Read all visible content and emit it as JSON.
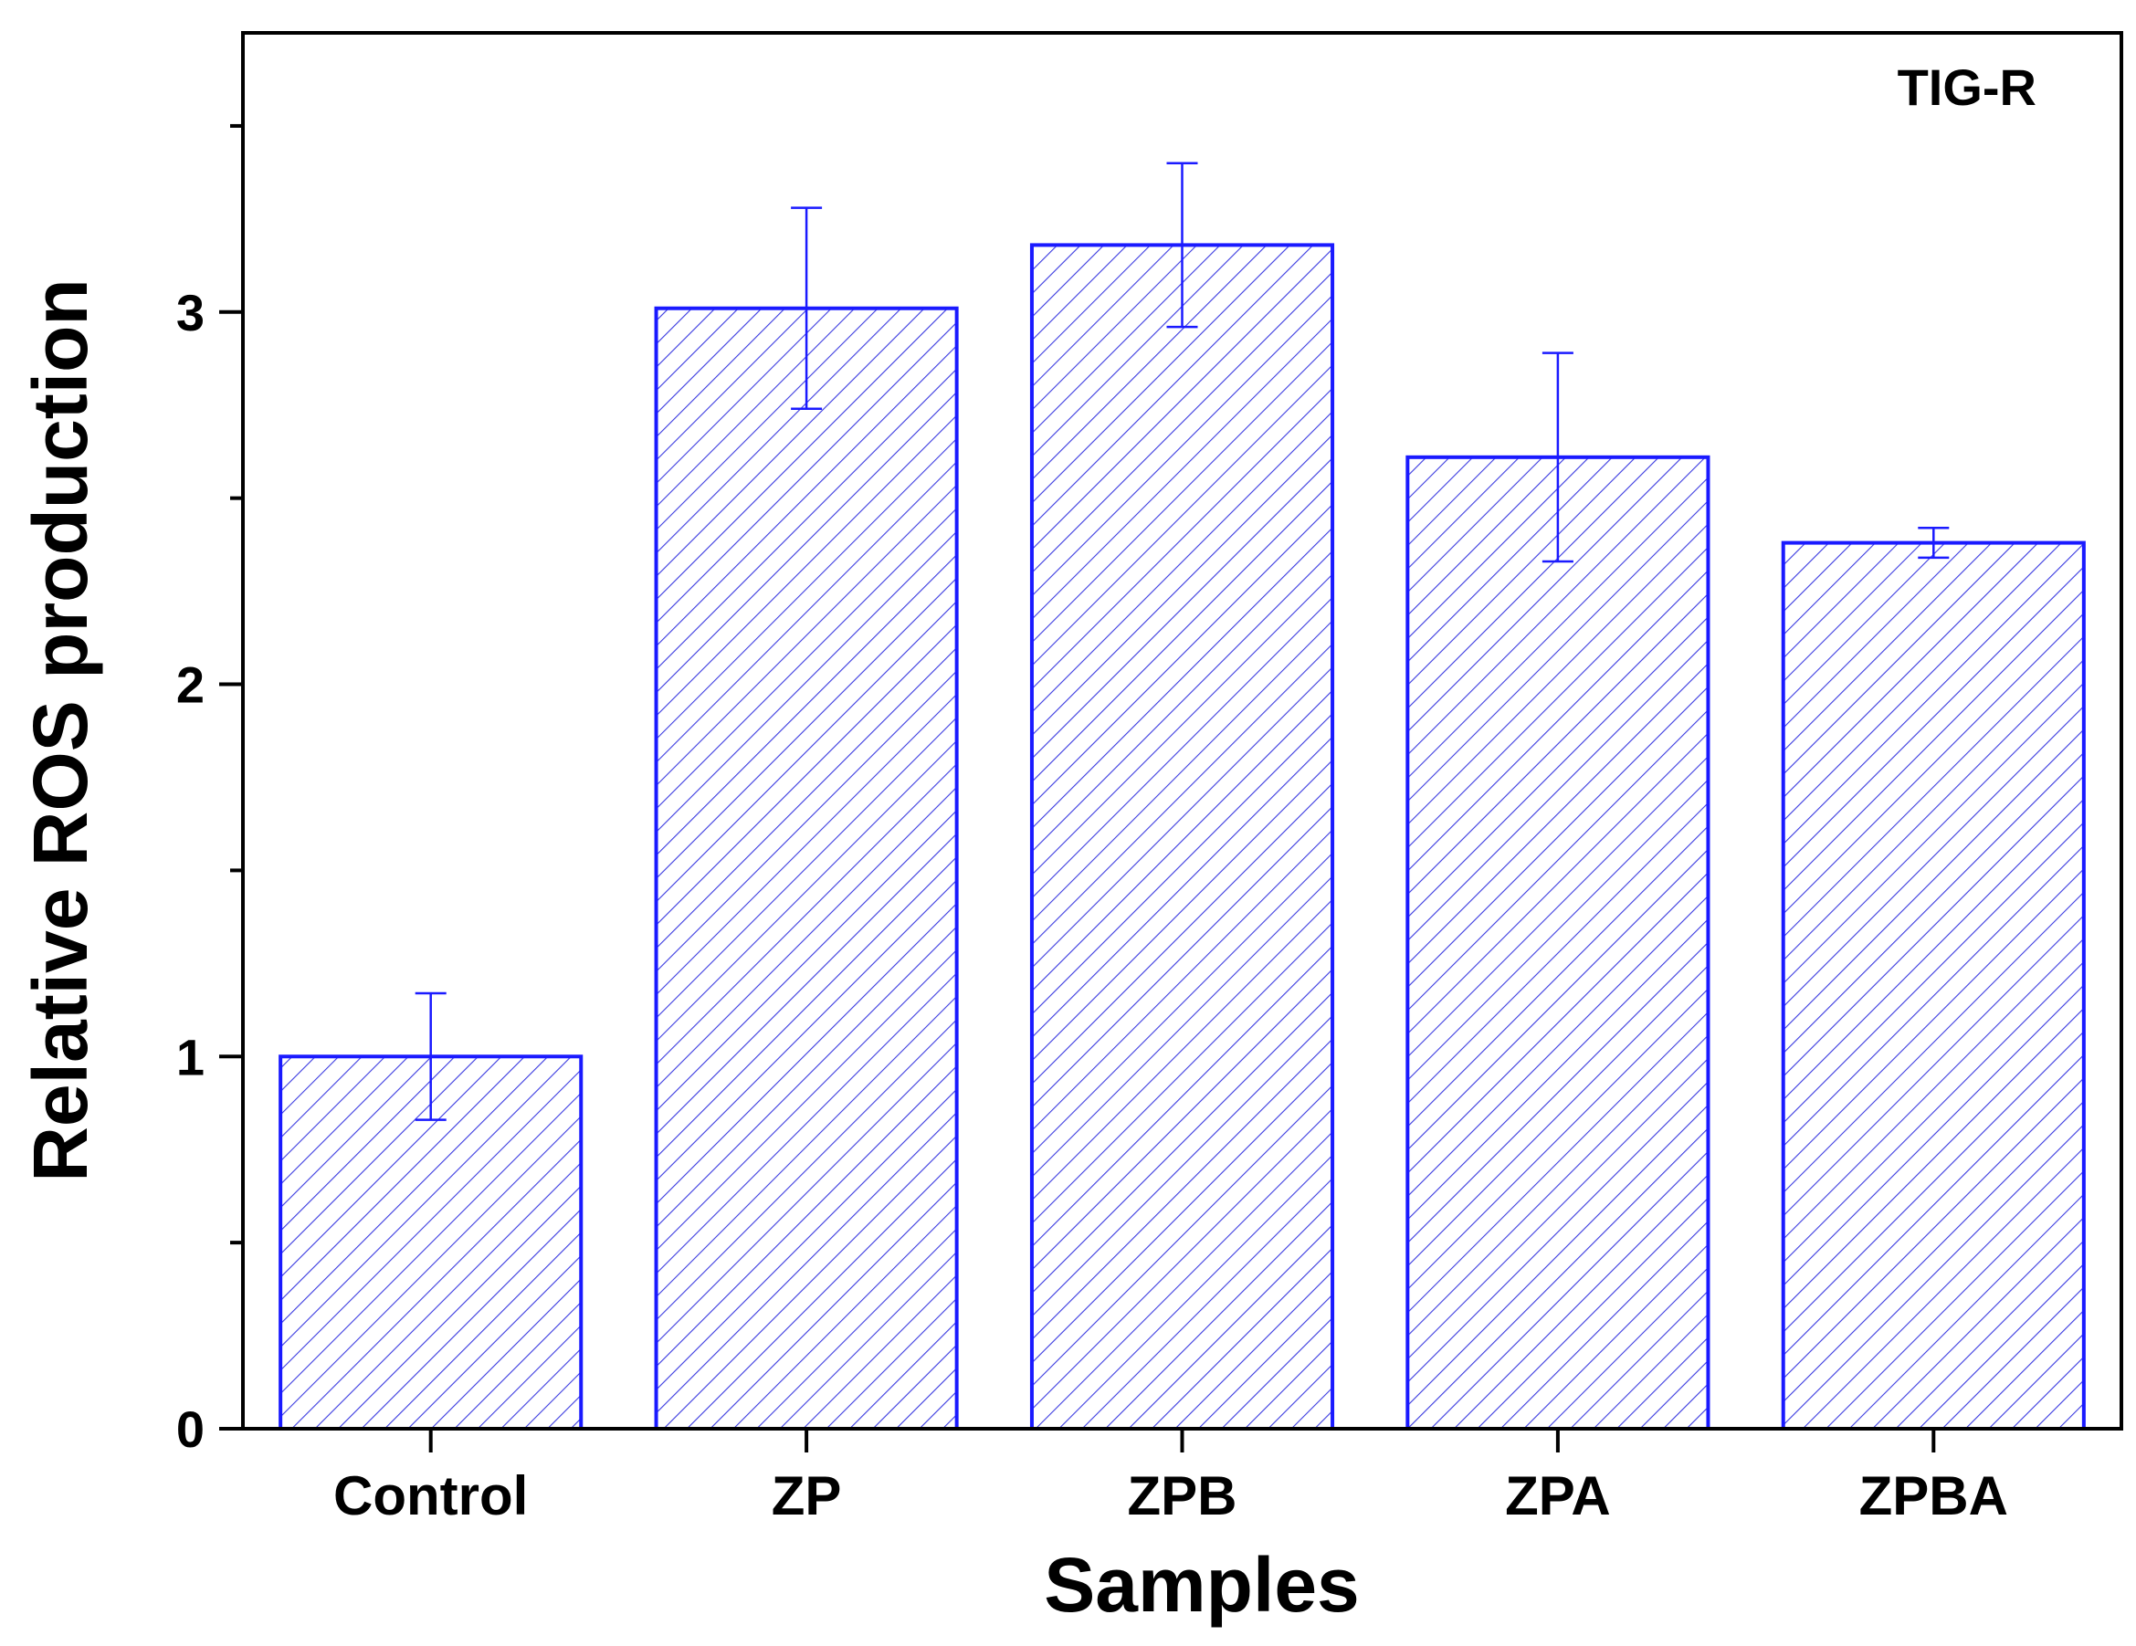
{
  "chart_data": {
    "type": "bar",
    "title": "",
    "annotation": "TIG-R",
    "xlabel": "Samples",
    "ylabel": "Relative ROS production",
    "categories": [
      "Control",
      "ZP",
      "ZPB",
      "ZPA",
      "ZPBA"
    ],
    "values": [
      1.0,
      3.01,
      3.18,
      2.61,
      2.38
    ],
    "errors": [
      0.17,
      0.27,
      0.22,
      0.28,
      0.04
    ],
    "ylim": [
      0,
      3.75
    ],
    "yticks": [
      0,
      1,
      2,
      3
    ],
    "yticks_minor": [
      0.5,
      1.5,
      2.5,
      3.5
    ],
    "ytick_labels": [
      "0",
      "1",
      "2",
      "3"
    ],
    "grid": false,
    "legend": "none",
    "colors": {
      "bar_edge": "#1a1aff",
      "hatch": "#3a3ae0",
      "error_bar": "#1a1aff",
      "axis": "#000000"
    }
  }
}
